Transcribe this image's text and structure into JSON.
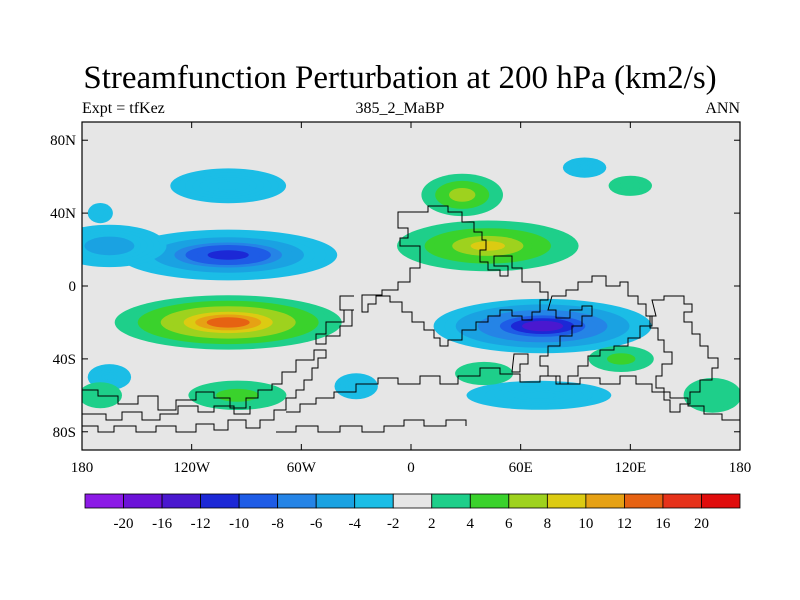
{
  "title": "Streamfunction Perturbation at 200 hPa (km2/s)",
  "left_string": "Expt = tfKez",
  "center_string": "385_2_MaBP",
  "right_string": "ANN",
  "chart_data": {
    "type": "heatmap",
    "title": "Streamfunction Perturbation at 200 hPa (km2/s)",
    "x_ticks": [
      "180",
      "120W",
      "60W",
      "0",
      "60E",
      "120E",
      "180"
    ],
    "y_ticks": [
      "80N",
      "40N",
      "0",
      "40S",
      "80S"
    ],
    "xlim": [
      -180,
      180
    ],
    "ylim": [
      -90,
      90
    ],
    "colorbar": {
      "labels": [
        "-20",
        "-16",
        "-12",
        "-10",
        "-8",
        "-6",
        "-4",
        "-2",
        "2",
        "4",
        "6",
        "8",
        "10",
        "12",
        "16",
        "20"
      ],
      "colors": [
        "#8c1ae6",
        "#6c12d8",
        "#4a18cf",
        "#1c28d6",
        "#1e5ce6",
        "#2584e6",
        "#1aa2e2",
        "#1bbde6",
        "#e6e6e6",
        "#1ecf8a",
        "#3ad22c",
        "#9ed21e",
        "#dccb12",
        "#e6a114",
        "#e66212",
        "#e6321a",
        "#e00c0c"
      ]
    },
    "features": [
      {
        "kind": "high",
        "center": [
          -100,
          -20
        ],
        "peak": 14
      },
      {
        "kind": "low",
        "center": [
          -100,
          17
        ],
        "peak": -12
      },
      {
        "kind": "high",
        "center": [
          42,
          22
        ],
        "peak": 10
      },
      {
        "kind": "low",
        "center": [
          72,
          -22
        ],
        "peak": -14
      },
      {
        "kind": "high",
        "center": [
          28,
          50
        ],
        "peak": 8
      },
      {
        "kind": "low",
        "center": [
          -165,
          22
        ],
        "peak": -6
      },
      {
        "kind": "low",
        "center": [
          -100,
          55
        ],
        "peak": -4
      },
      {
        "kind": "low",
        "center": [
          70,
          -60
        ],
        "peak": -4
      },
      {
        "kind": "high",
        "center": [
          -95,
          -60
        ],
        "peak": 6
      },
      {
        "kind": "high",
        "center": [
          115,
          -40
        ],
        "peak": 6
      },
      {
        "kind": "high",
        "center": [
          40,
          -48
        ],
        "peak": 4
      },
      {
        "kind": "low",
        "center": [
          -30,
          -55
        ],
        "peak": -4
      },
      {
        "kind": "high",
        "center": [
          165,
          -60
        ],
        "peak": 4
      },
      {
        "kind": "low",
        "center": [
          95,
          65
        ],
        "peak": -4
      },
      {
        "kind": "low",
        "center": [
          -165,
          -50
        ],
        "peak": -4
      },
      {
        "kind": "high",
        "center": [
          -170,
          -60
        ],
        "peak": 4
      },
      {
        "kind": "low",
        "center": [
          -170,
          40
        ],
        "peak": -3
      },
      {
        "kind": "high",
        "center": [
          120,
          55
        ],
        "peak": 4
      }
    ]
  }
}
